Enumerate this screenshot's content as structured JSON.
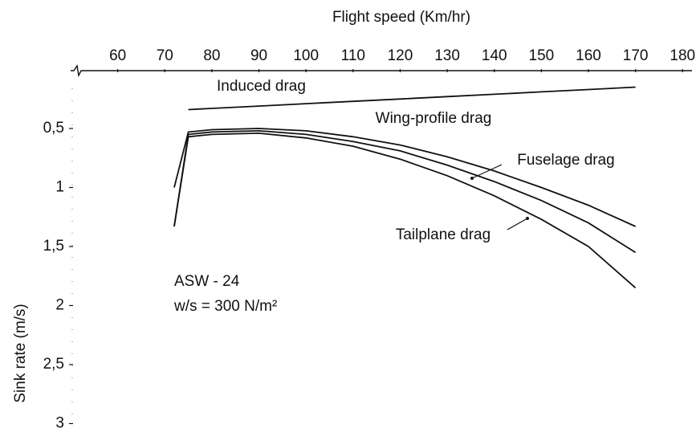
{
  "chart_data": {
    "type": "line",
    "title": "Flight speed (Km/hr)",
    "y_label": "Sink rate (m/s)",
    "annotations": [
      "ASW - 24",
      "w/s = 300 N/m²"
    ],
    "x": [
      72,
      75,
      80,
      90,
      100,
      110,
      120,
      130,
      140,
      150,
      160,
      170
    ],
    "series": [
      {
        "name": "Induced drag",
        "color": "#111111",
        "values": [
          null,
          0.34,
          0.33,
          0.31,
          0.29,
          0.27,
          0.25,
          0.23,
          0.21,
          0.19,
          0.17,
          0.15
        ]
      },
      {
        "name": "Wing-profile drag",
        "color": "#111111",
        "values": [
          1.0,
          0.53,
          0.51,
          0.5,
          0.52,
          0.57,
          0.64,
          0.74,
          0.86,
          1.0,
          1.15,
          1.33
        ]
      },
      {
        "name": "Fuselage drag",
        "color": "#111111",
        "values": [
          1.33,
          0.55,
          0.53,
          0.52,
          0.55,
          0.61,
          0.69,
          0.81,
          0.95,
          1.11,
          1.3,
          1.55
        ]
      },
      {
        "name": "Tailplane drag",
        "color": "#111111",
        "values": [
          1.33,
          0.57,
          0.55,
          0.54,
          0.58,
          0.65,
          0.76,
          0.9,
          1.07,
          1.27,
          1.5,
          1.85
        ]
      }
    ],
    "xlim": [
      50,
      182
    ],
    "xticks": [
      60,
      70,
      80,
      90,
      100,
      110,
      120,
      130,
      140,
      150,
      160,
      170,
      180
    ],
    "ylim": [
      0.1,
      3
    ],
    "yticks": [
      {
        "value": 0.5,
        "label": "0,5"
      },
      1,
      {
        "value": 1.5,
        "label": "1,5"
      },
      2,
      {
        "value": 2.5,
        "label": "2,5"
      },
      3
    ],
    "y_inverted": true
  }
}
